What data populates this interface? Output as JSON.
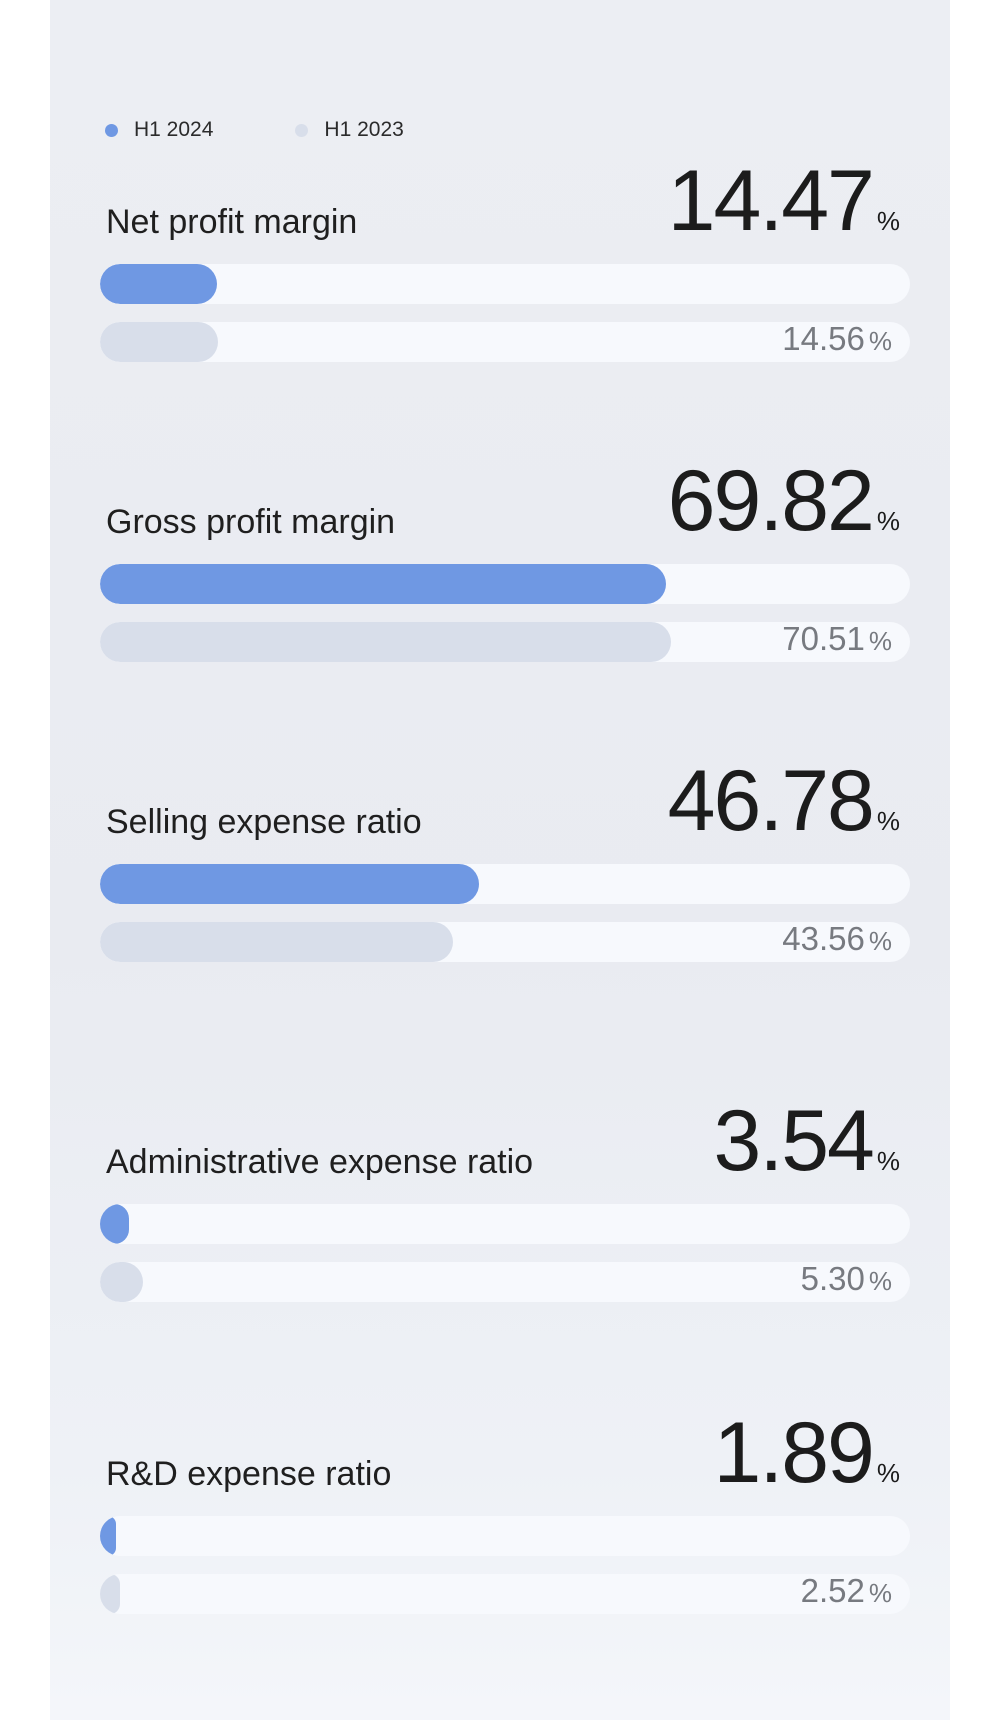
{
  "chart_data": {
    "type": "bar",
    "series": [
      {
        "name": "H1 2024",
        "color": "#6f98e3"
      },
      {
        "name": "H1 2023",
        "color": "#d8deea"
      }
    ],
    "percent_sign": "%",
    "metrics": [
      {
        "label": "Net profit margin",
        "current": "14.47",
        "previous": "14.56"
      },
      {
        "label": "Gross profit margin",
        "current": "69.82",
        "previous": "70.51"
      },
      {
        "label": "Selling expense ratio",
        "current": "46.78",
        "previous": "43.56"
      },
      {
        "label": "Administrative expense ratio",
        "current": "3.54",
        "previous": "5.30"
      },
      {
        "label": "R&D expense ratio",
        "current": "1.89",
        "previous": "2.52"
      }
    ],
    "xlim": [
      0,
      100
    ]
  }
}
